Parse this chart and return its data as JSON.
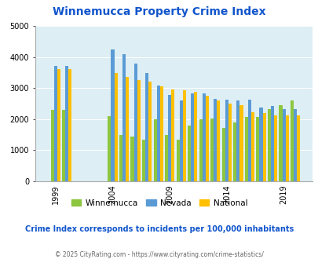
{
  "title": "Winnemucca Property Crime Index",
  "years": [
    1999,
    2000,
    2004,
    2005,
    2006,
    2007,
    2008,
    2009,
    2010,
    2011,
    2012,
    2013,
    2014,
    2015,
    2016,
    2017,
    2018,
    2019,
    2020
  ],
  "winnemucca": [
    2300,
    2300,
    2100,
    1500,
    1450,
    1350,
    2000,
    1480,
    1350,
    1800,
    2000,
    2020,
    1720,
    1900,
    2070,
    2060,
    2320,
    2440,
    2600
  ],
  "nevada": [
    3720,
    3720,
    4250,
    4100,
    3800,
    3480,
    3080,
    2780,
    2600,
    2830,
    2840,
    2640,
    2620,
    2590,
    2620,
    2370,
    2420,
    2330,
    2330
  ],
  "national": [
    3600,
    3600,
    3480,
    3360,
    3260,
    3200,
    3060,
    2960,
    2930,
    2880,
    2760,
    2610,
    2500,
    2460,
    2220,
    2190,
    2130,
    2110,
    2110
  ],
  "colors": {
    "winnemucca": "#8dc63f",
    "nevada": "#5b9bd5",
    "national": "#ffc000"
  },
  "bg_color": "#ddeef4",
  "ylim": [
    0,
    5000
  ],
  "yticks": [
    0,
    1000,
    2000,
    3000,
    4000,
    5000
  ],
  "xtick_labels": [
    "1999",
    "2004",
    "2009",
    "2014",
    "2019"
  ],
  "xtick_positions": [
    1999,
    2004,
    2009,
    2014,
    2019
  ],
  "footnote": "Crime Index corresponds to incidents per 100,000 inhabitants",
  "copyright": "© 2025 CityRating.com - https://www.cityrating.com/crime-statistics/",
  "title_color": "#1155cc",
  "footnote_color": "#1155cc",
  "copyright_color": "#666666",
  "xlim": [
    1997.2,
    2021.5
  ]
}
